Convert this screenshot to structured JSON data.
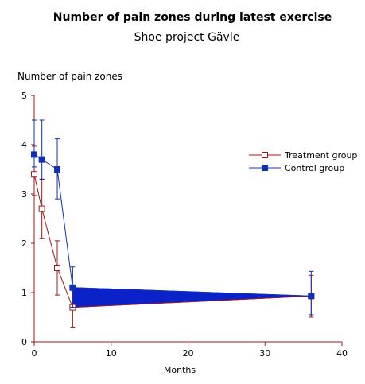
{
  "chart_data": {
    "type": "line",
    "title": "Number of pain zones during latest exercise",
    "subtitle": "Shoe project Gävle",
    "xlabel": "Months",
    "ylabel": "Number of pain zones",
    "xlim": [
      0,
      40
    ],
    "ylim": [
      0,
      5
    ],
    "xticks": [
      0,
      10,
      20,
      30,
      40
    ],
    "yticks": [
      0,
      1,
      2,
      3,
      4,
      5
    ],
    "grid": false,
    "legend_position": "right",
    "series": [
      {
        "name": "Treatment group",
        "color": "#a01818",
        "marker": "open-square",
        "x": [
          0,
          1,
          3,
          5,
          36
        ],
        "y": [
          3.4,
          2.7,
          1.5,
          0.7,
          0.93
        ],
        "err_low": [
          2.97,
          2.1,
          0.95,
          0.3,
          0.5
        ],
        "err_high": [
          3.97,
          3.3,
          2.05,
          1.08,
          1.35
        ]
      },
      {
        "name": "Control group",
        "color": "#1230b0",
        "marker": "filled-square",
        "x": [
          0,
          1,
          3,
          5,
          36
        ],
        "y": [
          3.8,
          3.7,
          3.5,
          1.1,
          0.93
        ],
        "err_low": [
          3.55,
          3.3,
          2.9,
          0.7,
          0.55
        ],
        "err_high": [
          4.5,
          4.5,
          4.12,
          1.52,
          1.43
        ]
      }
    ],
    "band": {
      "color": "#0b22c8",
      "x": [
        5,
        36
      ],
      "lower": [
        0.7,
        0.93
      ],
      "upper": [
        1.1,
        0.93
      ]
    }
  }
}
